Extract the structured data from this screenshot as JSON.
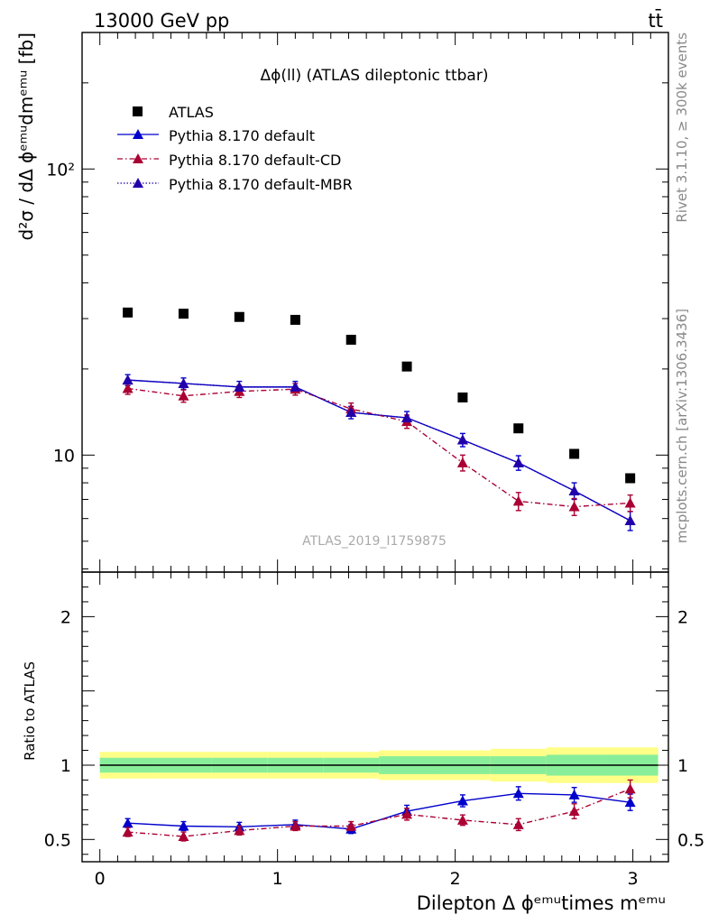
{
  "header": {
    "left": "13000 GeV pp",
    "right": "tt̄"
  },
  "side_labels": {
    "rivet": "Rivet 3.1.10, ≥ 300k events",
    "mcplots": "mcplots.cern.ch [arXiv:1306.3436]"
  },
  "watermark": "ATLAS_2019_I1759875",
  "colors": {
    "atlas": "#000000",
    "default": "#0000cc",
    "cd": "#aa0033",
    "mbr": "#2200aa",
    "band_outer": "#ffff88",
    "band_inner": "#88ee99"
  },
  "chart_data": [
    {
      "type": "scatter",
      "panel": "main",
      "title": "Δϕ(ll) (ATLAS dileptonic ttbar)",
      "ylabel": "d²σ / dΔ ϕᵉᵐᵘdmᵉᵐᵘ [fb]",
      "yscale": "log",
      "xlim": [
        -0.1,
        3.2
      ],
      "ylim": [
        3.9,
        300
      ],
      "y_tick_labels": [
        "10",
        "10²"
      ],
      "legend_position": "top-left",
      "legend": [
        "ATLAS",
        "Pythia 8.170 default",
        "Pythia 8.170 default-CD",
        "Pythia 8.170 default-MBR"
      ],
      "x": [
        0.157,
        0.471,
        0.785,
        1.1,
        1.414,
        1.728,
        2.042,
        2.356,
        2.67,
        2.985
      ],
      "series": [
        {
          "name": "ATLAS",
          "marker": "square",
          "line": "none",
          "values": [
            31.5,
            31.2,
            30.4,
            29.7,
            25.3,
            20.4,
            15.9,
            12.4,
            10.1,
            8.3
          ]
        },
        {
          "name": "Pythia 8.170 default",
          "marker": "triangle",
          "line": "solid",
          "values": [
            18.3,
            17.8,
            17.3,
            17.3,
            14.1,
            13.5,
            11.3,
            9.4,
            7.5,
            5.9
          ],
          "errors": [
            0.8,
            0.8,
            0.8,
            0.8,
            0.7,
            0.7,
            0.6,
            0.55,
            0.5,
            0.45
          ]
        },
        {
          "name": "Pythia 8.170 default-CD",
          "marker": "triangle",
          "line": "dashdot",
          "values": [
            17.1,
            16.1,
            16.7,
            17.0,
            14.5,
            13.1,
            9.4,
            6.9,
            6.6,
            6.8
          ],
          "errors": [
            0.8,
            0.8,
            0.8,
            0.8,
            0.7,
            0.7,
            0.6,
            0.5,
            0.45,
            0.45
          ]
        },
        {
          "name": "Pythia 8.170 default-MBR",
          "marker": "triangle",
          "line": "dotted",
          "values": [
            18.3,
            17.8,
            17.3,
            17.3,
            14.1,
            13.5,
            11.3,
            9.4,
            7.5,
            5.9
          ]
        }
      ]
    },
    {
      "type": "scatter",
      "panel": "ratio",
      "ylabel": "Ratio to ATLAS",
      "xlabel": "Dilepton Δ ϕᵉᵐᵘtimes mᵉᵐᵘ",
      "xlim": [
        -0.1,
        3.2
      ],
      "ylim": [
        0.35,
        2.3
      ],
      "x_tick_labels": [
        "0",
        "1",
        "2",
        "3"
      ],
      "y_tick_labels": [
        "0.5",
        "1",
        "2"
      ],
      "x": [
        0.157,
        0.471,
        0.785,
        1.1,
        1.414,
        1.728,
        2.042,
        2.356,
        2.67,
        2.985
      ],
      "band_edges": [
        0.0,
        0.314,
        0.628,
        0.942,
        1.257,
        1.571,
        1.885,
        2.199,
        2.513,
        2.827,
        3.142
      ],
      "band_outer": [
        0.09,
        0.09,
        0.09,
        0.09,
        0.09,
        0.1,
        0.1,
        0.11,
        0.12,
        0.12
      ],
      "band_inner": [
        0.05,
        0.05,
        0.05,
        0.05,
        0.05,
        0.06,
        0.06,
        0.06,
        0.07,
        0.07
      ],
      "series": [
        {
          "name": "Pythia 8.170 default",
          "values": [
            0.61,
            0.59,
            0.585,
            0.6,
            0.57,
            0.69,
            0.76,
            0.81,
            0.8,
            0.75
          ],
          "errors": [
            0.03,
            0.03,
            0.03,
            0.03,
            0.03,
            0.04,
            0.04,
            0.045,
            0.05,
            0.055
          ]
        },
        {
          "name": "Pythia 8.170 default-CD",
          "values": [
            0.55,
            0.52,
            0.56,
            0.59,
            0.59,
            0.67,
            0.63,
            0.6,
            0.69,
            0.84
          ],
          "errors": [
            0.03,
            0.03,
            0.03,
            0.03,
            0.03,
            0.04,
            0.035,
            0.04,
            0.05,
            0.06
          ]
        }
      ]
    }
  ]
}
